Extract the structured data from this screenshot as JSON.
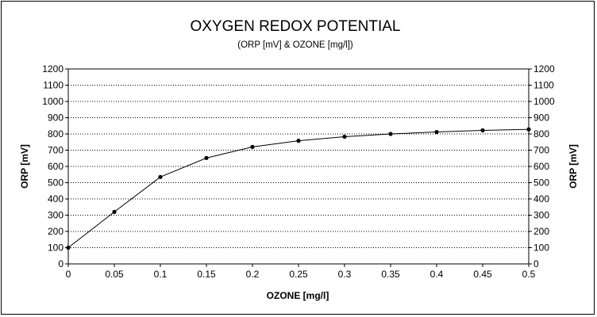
{
  "chart_data": {
    "type": "line",
    "title": "OXYGEN REDOX POTENTIAL",
    "subtitle": "(ORP [mV] & OZONE [mg/l])",
    "xlabel": "OZONE [mg/l]",
    "ylabel": "ORP [mV]",
    "ylabel_right": "ORP [mV]",
    "xlim": [
      0,
      0.5
    ],
    "ylim": [
      0,
      1200
    ],
    "x_ticks": [
      "0",
      "0.05",
      "0.1",
      "0.15",
      "0.2",
      "0.25",
      "0.3",
      "0.35",
      "0.4",
      "0.45",
      "0.5"
    ],
    "y_ticks": [
      "0",
      "100",
      "200",
      "300",
      "400",
      "500",
      "600",
      "700",
      "800",
      "900",
      "1000",
      "1100",
      "1200"
    ],
    "grid": true,
    "series": [
      {
        "x": [
          0,
          0.05,
          0.1,
          0.15,
          0.2,
          0.25,
          0.3,
          0.35,
          0.4,
          0.45,
          0.5
        ],
        "values": [
          100,
          320,
          535,
          652,
          720,
          758,
          783,
          800,
          812,
          822,
          828
        ]
      }
    ]
  }
}
